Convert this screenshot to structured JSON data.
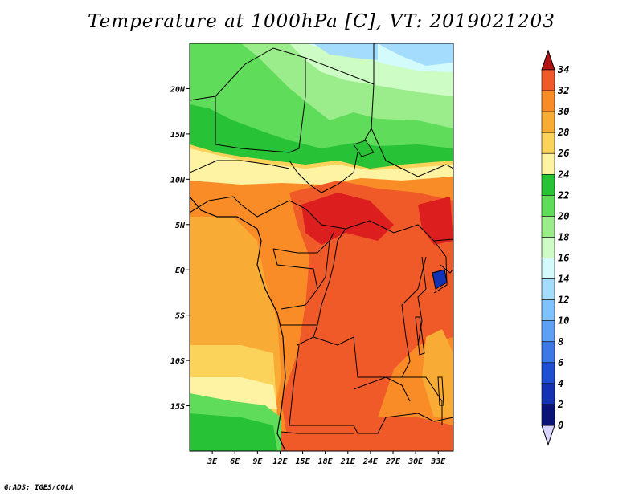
{
  "title": "Temperature at 1000hPa [C], VT: 2019021203",
  "credit": "GrADS: IGES/COLA",
  "map": {
    "extent": {
      "lon_min": 0,
      "lon_max": 35,
      "lat_min": -20,
      "lat_max": 25
    },
    "lat_labels": [
      {
        "lat": 20,
        "text": "20N"
      },
      {
        "lat": 15,
        "text": "15N"
      },
      {
        "lat": 10,
        "text": "10N"
      },
      {
        "lat": 5,
        "text": "5N"
      },
      {
        "lat": 0,
        "text": "EQ"
      },
      {
        "lat": -5,
        "text": "5S"
      },
      {
        "lat": -10,
        "text": "10S"
      },
      {
        "lat": -15,
        "text": "15S"
      }
    ],
    "lon_labels": [
      {
        "lon": 3,
        "text": "3E"
      },
      {
        "lon": 6,
        "text": "6E"
      },
      {
        "lon": 9,
        "text": "9E"
      },
      {
        "lon": 12,
        "text": "12E"
      },
      {
        "lon": 15,
        "text": "15E"
      },
      {
        "lon": 18,
        "text": "18E"
      },
      {
        "lon": 21,
        "text": "21E"
      },
      {
        "lon": 24,
        "text": "24E"
      },
      {
        "lon": 27,
        "text": "27E"
      },
      {
        "lon": 30,
        "text": "30E"
      },
      {
        "lon": 33,
        "text": "33E"
      }
    ]
  },
  "colorbar": {
    "labels": [
      "34",
      "32",
      "30",
      "28",
      "26",
      "24",
      "22",
      "20",
      "18",
      "16",
      "14",
      "12",
      "10",
      "8",
      "6",
      "4",
      "2",
      "0"
    ],
    "colors": [
      "#dc1e1e",
      "#f05a28",
      "#fa8c28",
      "#f8ac35",
      "#fbd25a",
      "#fdf3a2",
      "#27c236",
      "#5fdc5a",
      "#9aed8a",
      "#cdfcc5",
      "#d3fbfb",
      "#a4dcfe",
      "#7fc2fe",
      "#5ea0f5",
      "#3c78e6",
      "#1e4fd2",
      "#1432b4",
      "#0a1478"
    ],
    "top_arrow_color": "#b41414",
    "bottom_arrow_color": "#d8d4ff"
  }
}
